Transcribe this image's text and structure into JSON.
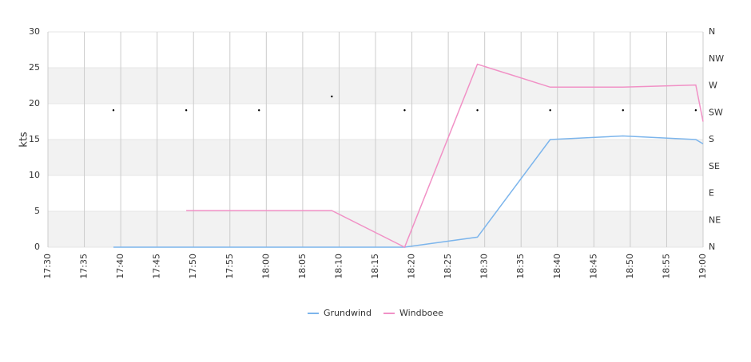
{
  "chart_data": {
    "type": "line",
    "y_label": "kts",
    "x": [
      "17:39",
      "17:49",
      "17:59",
      "18:09",
      "18:19",
      "18:29",
      "18:39",
      "18:49",
      "18:59",
      "19:00"
    ],
    "series": [
      {
        "name": "Grundwind",
        "color": "#7cb5ec",
        "values": [
          0,
          0,
          0,
          0,
          0,
          1.4,
          15,
          15.5,
          15,
          14.4
        ]
      },
      {
        "name": "Windboee",
        "color": "#f191c6",
        "values": [
          null,
          5.1,
          5.1,
          5.1,
          0,
          25.5,
          22.3,
          22.3,
          22.6,
          17.5
        ]
      },
      {
        "type": "scatter",
        "axis": "y2",
        "color": "#000000",
        "values": [
          229,
          229,
          229,
          252,
          229,
          229,
          229,
          229,
          229,
          null
        ]
      }
    ],
    "xlim": [
      "17:30",
      "19:00"
    ],
    "xticks": [
      "17:30",
      "17:35",
      "17:40",
      "17:45",
      "17:50",
      "17:55",
      "18:00",
      "18:05",
      "18:10",
      "18:15",
      "18:20",
      "18:25",
      "18:30",
      "18:35",
      "18:40",
      "18:45",
      "18:50",
      "18:55",
      "19:00"
    ],
    "ylim": [
      0,
      30
    ],
    "yticks": [
      0,
      5,
      10,
      15,
      20,
      25,
      30
    ],
    "y2lim": [
      0,
      360
    ],
    "y2ticks": [
      {
        "value": 0,
        "label": "N"
      },
      {
        "value": 45,
        "label": "NE"
      },
      {
        "value": 90,
        "label": "E"
      },
      {
        "value": 135,
        "label": "SE"
      },
      {
        "value": 180,
        "label": "S"
      },
      {
        "value": 225,
        "label": "SW"
      },
      {
        "value": 270,
        "label": "W"
      },
      {
        "value": 315,
        "label": "NW"
      },
      {
        "value": 360,
        "label": "N"
      }
    ],
    "bands": true,
    "grid": true,
    "legend": "bottom"
  }
}
